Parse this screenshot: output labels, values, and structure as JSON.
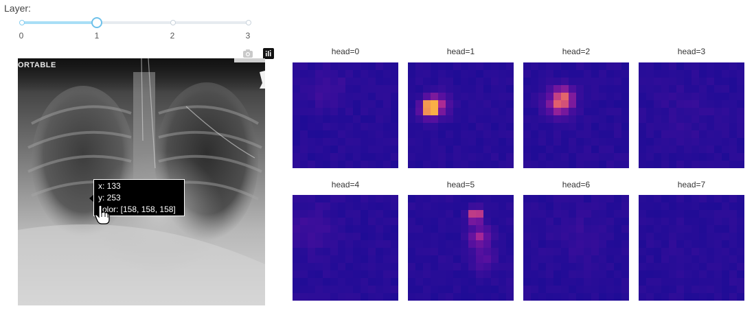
{
  "slider": {
    "label": "Layer:",
    "value": 1,
    "marks": [
      "0",
      "1",
      "2",
      "3"
    ]
  },
  "image_panel": {
    "corner_text": "ORTABLE",
    "tooltip": {
      "x_line": "x: 133",
      "y_line": "y: 253",
      "color_line": "color: [158, 158, 158]"
    }
  },
  "modebar": {
    "buttons": [
      "camera-icon",
      "plotly-logo-icon"
    ]
  },
  "heads": [
    {
      "title": "head=0"
    },
    {
      "title": "head=1"
    },
    {
      "title": "head=2"
    },
    {
      "title": "head=3"
    },
    {
      "title": "head=4"
    },
    {
      "title": "head=5"
    },
    {
      "title": "head=6"
    },
    {
      "title": "head=7"
    }
  ],
  "colors": {
    "accent": "#6ec1ea",
    "heatmap_base": "#1f0c96",
    "heatmap_hot": "#f9a444"
  }
}
